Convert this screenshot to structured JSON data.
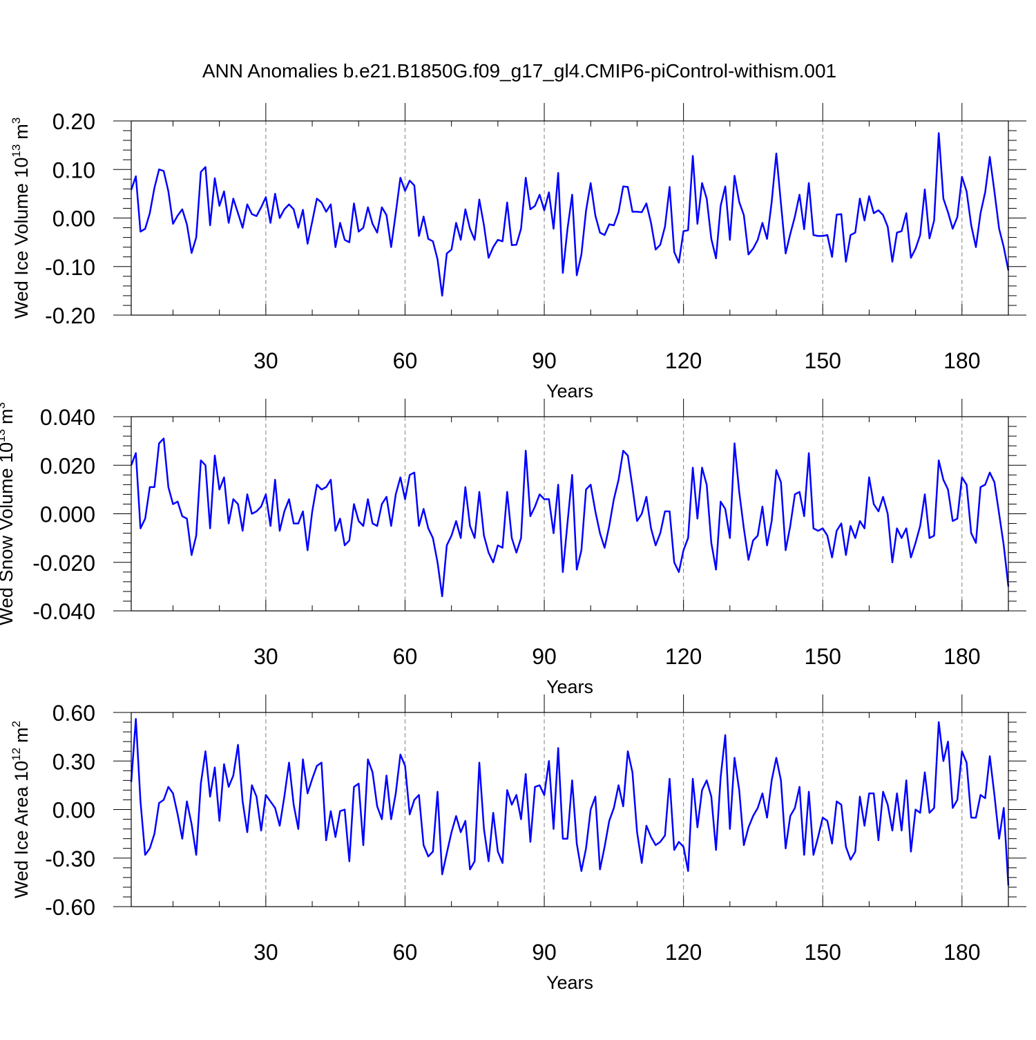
{
  "figure": {
    "title": "ANN Anomalies b.e21.B1850G.f09_g17_gl4.CMIP6-piControl-withism.001",
    "line_color": "#0000ff",
    "gridline_color": "#808080"
  },
  "chart_data": [
    {
      "type": "line",
      "title": "",
      "xlabel": "Years",
      "ylabel": "Wed Ice Volume 10",
      "ylabel_exp": "13",
      "ylabel_unit": "m",
      "ylabel_unit_exp": "3",
      "xlim": [
        1,
        190
      ],
      "ylim": [
        -0.2,
        0.2
      ],
      "xticks": [
        30,
        60,
        90,
        120,
        150,
        180
      ],
      "xtick_labels": [
        "30",
        "60",
        "90",
        "120",
        "150",
        "180"
      ],
      "yticks": [
        -0.2,
        -0.1,
        0.0,
        0.1,
        0.2
      ],
      "ytick_labels": [
        "-0.20",
        "-0.10",
        "0.00",
        "0.10",
        "0.20"
      ],
      "grid": "vertical dashed at x ticks",
      "series": [
        {
          "values": [
            0.058,
            0.086,
            -0.028,
            -0.022,
            0.01,
            0.062,
            0.1,
            0.097,
            0.055,
            -0.012,
            0.005,
            0.018,
            -0.013,
            -0.072,
            -0.04,
            0.095,
            0.105,
            -0.015,
            0.082,
            0.025,
            0.055,
            -0.01,
            0.04,
            0.01,
            -0.02,
            0.028,
            0.008,
            0.004,
            0.022,
            0.043,
            -0.01,
            0.05,
            0.0,
            0.018,
            0.028,
            0.018,
            -0.02,
            0.017,
            -0.053,
            -0.007,
            0.04,
            0.032,
            0.013,
            0.028,
            -0.06,
            -0.01,
            -0.045,
            -0.05,
            0.03,
            -0.028,
            -0.02,
            0.022,
            -0.012,
            -0.03,
            0.022,
            0.006,
            -0.06,
            0.01,
            0.083,
            0.056,
            0.077,
            0.067,
            -0.037,
            0.003,
            -0.043,
            -0.048,
            -0.085,
            -0.16,
            -0.073,
            -0.065,
            -0.01,
            -0.045,
            0.018,
            -0.022,
            -0.045,
            0.038,
            -0.015,
            -0.082,
            -0.06,
            -0.045,
            -0.048,
            0.032,
            -0.056,
            -0.055,
            -0.022,
            0.083,
            0.018,
            0.025,
            0.048,
            0.016,
            0.053,
            -0.022,
            0.093,
            -0.113,
            -0.023,
            0.048,
            -0.118,
            -0.075,
            0.015,
            0.072,
            0.005,
            -0.03,
            -0.035,
            -0.013,
            -0.015,
            0.012,
            0.065,
            0.064,
            0.013,
            0.013,
            0.012,
            0.03,
            -0.01,
            -0.065,
            -0.055,
            -0.018,
            0.064,
            -0.07,
            -0.092,
            -0.027,
            -0.025,
            0.128,
            -0.012,
            0.072,
            0.04,
            -0.043,
            -0.083,
            0.025,
            0.065,
            -0.045,
            0.087,
            0.033,
            0.006,
            -0.075,
            -0.063,
            -0.045,
            -0.01,
            -0.043,
            0.033,
            0.133,
            0.03,
            -0.073,
            -0.033,
            0.003,
            0.048,
            -0.023,
            0.072,
            -0.035,
            -0.037,
            -0.037,
            -0.035,
            -0.08,
            0.007,
            0.008,
            -0.09,
            -0.035,
            -0.03,
            0.04,
            -0.005,
            0.045,
            0.01,
            0.016,
            0.006,
            -0.018,
            -0.09,
            -0.03,
            -0.027,
            0.01,
            -0.082,
            -0.063,
            -0.035,
            0.059,
            -0.042,
            -0.005,
            0.175,
            0.04,
            0.012,
            -0.022,
            0.002,
            0.085,
            0.055,
            -0.015,
            -0.06,
            0.01,
            0.053,
            0.126,
            0.055,
            -0.022,
            -0.06,
            -0.108
          ]
        }
      ]
    },
    {
      "type": "line",
      "title": "",
      "xlabel": "Years",
      "ylabel": "Wed Snow Volume 10",
      "ylabel_exp": "13",
      "ylabel_unit": "m",
      "ylabel_unit_exp": "3",
      "xlim": [
        1,
        190
      ],
      "ylim": [
        -0.04,
        0.04
      ],
      "xticks": [
        30,
        60,
        90,
        120,
        150,
        180
      ],
      "xtick_labels": [
        "30",
        "60",
        "90",
        "120",
        "150",
        "180"
      ],
      "yticks": [
        -0.04,
        -0.02,
        0.0,
        0.02,
        0.04
      ],
      "ytick_labels": [
        "-0.040",
        "-0.020",
        "0.000",
        "0.020",
        "0.040"
      ],
      "grid": "vertical dashed at x ticks",
      "series": [
        {
          "values": [
            0.02,
            0.025,
            -0.006,
            -0.002,
            0.011,
            0.011,
            0.029,
            0.031,
            0.011,
            0.004,
            0.005,
            -0.001,
            -0.002,
            -0.017,
            -0.009,
            0.022,
            0.02,
            -0.006,
            0.024,
            0.01,
            0.015,
            -0.004,
            0.006,
            0.004,
            -0.007,
            0.008,
            0.0,
            0.001,
            0.003,
            0.008,
            -0.005,
            0.014,
            -0.007,
            0.001,
            0.006,
            -0.004,
            -0.004,
            0.001,
            -0.015,
            0.001,
            0.012,
            0.01,
            0.011,
            0.014,
            -0.007,
            -0.002,
            -0.013,
            -0.011,
            0.004,
            -0.003,
            -0.005,
            0.006,
            -0.004,
            -0.005,
            0.004,
            0.007,
            -0.005,
            0.008,
            0.015,
            0.006,
            0.016,
            0.017,
            -0.005,
            0.002,
            -0.006,
            -0.01,
            -0.02,
            -0.034,
            -0.013,
            -0.009,
            -0.003,
            -0.01,
            0.011,
            -0.005,
            -0.01,
            0.009,
            -0.009,
            -0.016,
            -0.02,
            -0.013,
            -0.014,
            0.009,
            -0.01,
            -0.016,
            -0.01,
            0.026,
            -0.001,
            0.003,
            0.008,
            0.006,
            0.006,
            -0.008,
            0.012,
            -0.024,
            -0.004,
            0.016,
            -0.023,
            -0.015,
            0.01,
            0.012,
            0.001,
            -0.008,
            -0.014,
            -0.005,
            0.006,
            0.014,
            0.026,
            0.024,
            0.011,
            -0.003,
            0.0,
            0.007,
            -0.006,
            -0.013,
            -0.008,
            0.001,
            0.001,
            -0.02,
            -0.024,
            -0.015,
            -0.01,
            0.019,
            -0.002,
            0.019,
            0.012,
            -0.012,
            -0.023,
            0.005,
            0.002,
            -0.01,
            0.029,
            0.009,
            -0.006,
            -0.019,
            -0.011,
            -0.009,
            0.003,
            -0.013,
            -0.003,
            0.018,
            0.013,
            -0.015,
            -0.005,
            0.008,
            0.009,
            -0.001,
            0.025,
            -0.006,
            -0.007,
            -0.006,
            -0.009,
            -0.018,
            -0.007,
            -0.004,
            -0.017,
            -0.005,
            -0.01,
            -0.003,
            -0.006,
            0.015,
            0.004,
            0.001,
            0.007,
            0.0,
            -0.02,
            -0.006,
            -0.01,
            -0.006,
            -0.018,
            -0.012,
            -0.005,
            0.008,
            -0.01,
            -0.009,
            0.022,
            0.014,
            0.01,
            -0.003,
            -0.002,
            0.015,
            0.012,
            -0.008,
            -0.012,
            0.011,
            0.012,
            0.017,
            0.013,
            0.0,
            -0.013,
            -0.03
          ]
        }
      ]
    },
    {
      "type": "line",
      "title": "",
      "xlabel": "Years",
      "ylabel": "Wed Ice Area 10",
      "ylabel_exp": "12",
      "ylabel_unit": "m",
      "ylabel_unit_exp": "2",
      "xlim": [
        1,
        190
      ],
      "ylim": [
        -0.6,
        0.6
      ],
      "xticks": [
        30,
        60,
        90,
        120,
        150,
        180
      ],
      "xtick_labels": [
        "30",
        "60",
        "90",
        "120",
        "150",
        "180"
      ],
      "yticks": [
        -0.6,
        -0.3,
        0.0,
        0.3,
        0.6
      ],
      "ytick_labels": [
        "-0.60",
        "-0.30",
        "0.00",
        "0.30",
        "0.60"
      ],
      "grid": "vertical dashed at x ticks",
      "series": [
        {
          "values": [
            0.17,
            0.56,
            0.05,
            -0.28,
            -0.24,
            -0.15,
            0.04,
            0.06,
            0.14,
            0.1,
            -0.03,
            -0.18,
            0.05,
            -0.09,
            -0.28,
            0.16,
            0.36,
            0.08,
            0.26,
            -0.07,
            0.28,
            0.14,
            0.21,
            0.4,
            0.05,
            -0.14,
            0.15,
            0.08,
            -0.13,
            0.09,
            0.05,
            0.01,
            -0.1,
            0.08,
            0.29,
            0.03,
            -0.12,
            0.31,
            0.1,
            0.19,
            0.27,
            0.29,
            -0.19,
            -0.01,
            -0.17,
            -0.01,
            0.0,
            -0.32,
            0.14,
            0.16,
            -0.22,
            0.31,
            0.23,
            0.02,
            -0.06,
            0.21,
            -0.06,
            0.1,
            0.34,
            0.27,
            -0.03,
            0.06,
            0.09,
            -0.22,
            -0.29,
            -0.26,
            0.11,
            -0.4,
            -0.27,
            -0.14,
            -0.04,
            -0.14,
            -0.07,
            -0.37,
            -0.32,
            0.29,
            -0.12,
            -0.32,
            -0.02,
            -0.26,
            -0.33,
            0.12,
            0.03,
            0.09,
            -0.06,
            0.22,
            -0.2,
            0.14,
            0.15,
            0.09,
            0.3,
            -0.12,
            0.38,
            -0.18,
            -0.18,
            0.18,
            -0.21,
            -0.38,
            -0.24,
            0.0,
            0.08,
            -0.37,
            -0.23,
            -0.07,
            0.01,
            0.15,
            0.02,
            0.36,
            0.23,
            -0.14,
            -0.33,
            -0.1,
            -0.17,
            -0.22,
            -0.2,
            -0.16,
            0.19,
            -0.25,
            -0.2,
            -0.23,
            -0.38,
            0.19,
            -0.11,
            0.12,
            0.18,
            0.08,
            -0.25,
            0.2,
            0.46,
            -0.12,
            0.32,
            0.12,
            -0.22,
            -0.11,
            -0.04,
            0.01,
            0.1,
            -0.05,
            0.18,
            0.32,
            0.18,
            -0.24,
            -0.04,
            0.01,
            0.14,
            -0.28,
            0.11,
            -0.28,
            -0.17,
            -0.05,
            -0.07,
            -0.21,
            0.05,
            0.03,
            -0.23,
            -0.31,
            -0.26,
            0.08,
            -0.1,
            0.1,
            0.1,
            -0.19,
            0.11,
            0.03,
            -0.13,
            0.1,
            -0.13,
            0.18,
            -0.26,
            0.0,
            -0.02,
            0.23,
            -0.02,
            0.01,
            0.54,
            0.3,
            0.42,
            0.01,
            0.06,
            0.36,
            0.29,
            -0.05,
            -0.05,
            0.09,
            0.07,
            0.33,
            0.09,
            -0.18,
            0.01,
            -0.47
          ]
        }
      ]
    }
  ]
}
